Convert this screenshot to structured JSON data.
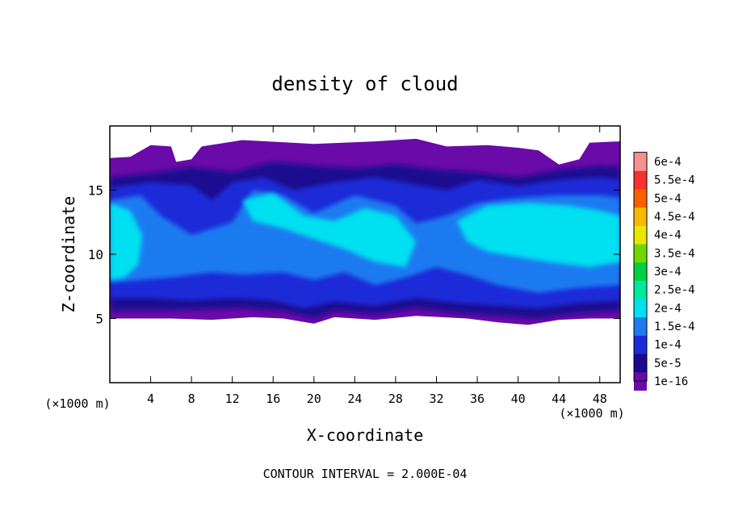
{
  "chart_data": {
    "type": "heatmap",
    "title": "density of cloud",
    "xlabel": "X-coordinate",
    "ylabel": "Z-coordinate",
    "x_unit_label": "(×1000 m)",
    "y_unit_label": "(×1000 m)",
    "footer": "CONTOUR INTERVAL = 2.000E-04",
    "xlim": [
      0,
      50
    ],
    "ylim": [
      0,
      20
    ],
    "x_ticks": [
      "4",
      "8",
      "12",
      "16",
      "20",
      "24",
      "28",
      "32",
      "36",
      "40",
      "44",
      "48"
    ],
    "x_tick_values": [
      4,
      8,
      12,
      16,
      20,
      24,
      28,
      32,
      36,
      40,
      44,
      48
    ],
    "y_ticks": [
      "5",
      "10",
      "15"
    ],
    "y_tick_values": [
      5,
      10,
      15
    ],
    "colorbar": {
      "labels": [
        "1e-16",
        "5e-5",
        "1e-4",
        "1.5e-4",
        "2e-4",
        "2.5e-4",
        "3e-4",
        "3.5e-4",
        "4e-4",
        "4.5e-4",
        "5e-4",
        "5.5e-4",
        "6e-4"
      ],
      "colors": [
        "#6a0aa8",
        "#1a0a90",
        "#1f2ad8",
        "#1e7af0",
        "#00e0f0",
        "#00e8a0",
        "#00d040",
        "#70d800",
        "#e8e800",
        "#f8b800",
        "#f86000",
        "#f83030",
        "#f89090"
      ]
    },
    "contour_bands_description": "cloud layer between z≈5 and z≈17, maximum ≈2e-4",
    "regions": [
      {
        "shape": "purple-base",
        "x": [
          0,
          50
        ],
        "z": [
          5,
          17.5
        ],
        "level": 1e-16
      },
      {
        "shape": "blue-core",
        "x": [
          0,
          50
        ],
        "z": [
          5.5,
          16.5
        ],
        "level": 0.0001
      },
      {
        "shape": "cyan-left",
        "x": [
          0,
          3
        ],
        "z": [
          8,
          14
        ],
        "level": 0.0002
      },
      {
        "shape": "cyan-right",
        "x": [
          38,
          50
        ],
        "z": [
          9.5,
          13
        ],
        "level": 0.0002
      }
    ]
  }
}
